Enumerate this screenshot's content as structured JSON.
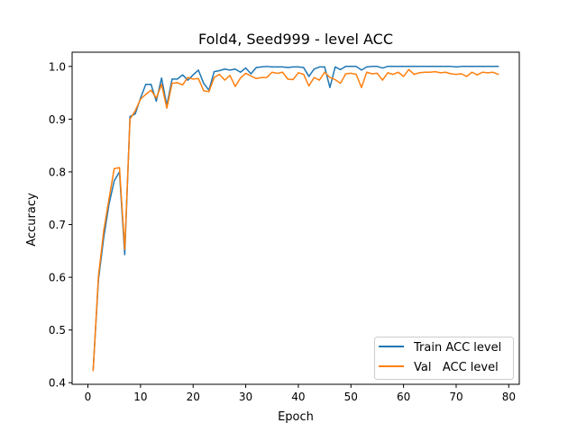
{
  "chart_data": {
    "type": "line",
    "title": "Fold4, Seed999 - level ACC",
    "xlabel": "Epoch",
    "ylabel": "Accuracy",
    "xlim": [
      -3,
      82
    ],
    "ylim": [
      0.397,
      1.027
    ],
    "xticks": [
      0,
      10,
      20,
      30,
      40,
      50,
      60,
      70,
      80
    ],
    "yticks": [
      0.4,
      0.5,
      0.6,
      0.7,
      0.8,
      0.9,
      1.0
    ],
    "ytick_labels": [
      "0.4",
      "0.5",
      "0.6",
      "0.7",
      "0.8",
      "0.9",
      "1.0"
    ],
    "grid": false,
    "legend_position": "lower-right",
    "x": [
      1,
      2,
      3,
      4,
      5,
      6,
      7,
      8,
      9,
      10,
      11,
      12,
      13,
      14,
      15,
      16,
      17,
      18,
      19,
      20,
      21,
      22,
      23,
      24,
      25,
      26,
      27,
      28,
      29,
      30,
      31,
      32,
      33,
      34,
      35,
      36,
      37,
      38,
      39,
      40,
      41,
      42,
      43,
      44,
      45,
      46,
      47,
      48,
      49,
      50,
      51,
      52,
      53,
      54,
      55,
      56,
      57,
      58,
      59,
      60,
      61,
      62,
      63,
      64,
      65,
      66,
      67,
      68,
      69,
      70,
      71,
      72,
      73,
      74,
      75,
      76,
      77,
      78
    ],
    "series": [
      {
        "name": "Train ACC level",
        "color": "#1f77b4",
        "values": [
          0.425,
          0.595,
          0.675,
          0.738,
          0.783,
          0.8,
          0.643,
          0.905,
          0.91,
          0.94,
          0.966,
          0.966,
          0.934,
          0.978,
          0.926,
          0.976,
          0.976,
          0.984,
          0.974,
          0.984,
          0.993,
          0.968,
          0.955,
          0.99,
          0.992,
          0.995,
          0.993,
          0.995,
          0.989,
          0.997,
          0.986,
          0.998,
          0.999,
          1.0,
          0.999,
          0.999,
          0.999,
          0.998,
          0.999,
          0.999,
          0.998,
          0.981,
          0.995,
          0.999,
          0.999,
          0.96,
          0.999,
          0.994,
          1.0,
          1.0,
          1.0,
          0.993,
          0.999,
          1.0,
          1.0,
          0.997,
          1.0,
          1.0,
          1.0,
          1.0,
          1.0,
          1.0,
          1.0,
          1.0,
          1.0,
          1.0,
          1.0,
          1.0,
          1.0,
          0.999,
          1.0,
          1.0,
          1.0,
          1.0,
          1.0,
          1.0,
          1.0,
          1.0
        ]
      },
      {
        "name": "Val   ACC level",
        "color": "#ff7f0e",
        "values": [
          0.423,
          0.602,
          0.688,
          0.748,
          0.806,
          0.808,
          0.653,
          0.9,
          0.916,
          0.938,
          0.947,
          0.955,
          0.94,
          0.966,
          0.921,
          0.968,
          0.969,
          0.965,
          0.979,
          0.976,
          0.977,
          0.954,
          0.952,
          0.979,
          0.985,
          0.974,
          0.983,
          0.962,
          0.978,
          0.987,
          0.982,
          0.977,
          0.979,
          0.979,
          0.989,
          0.987,
          0.989,
          0.976,
          0.975,
          0.988,
          0.985,
          0.963,
          0.979,
          0.974,
          0.989,
          0.979,
          0.975,
          0.968,
          0.986,
          0.987,
          0.985,
          0.96,
          0.989,
          0.986,
          0.987,
          0.974,
          0.988,
          0.985,
          0.989,
          0.981,
          0.994,
          0.985,
          0.988,
          0.989,
          0.989,
          0.99,
          0.988,
          0.989,
          0.986,
          0.985,
          0.986,
          0.981,
          0.989,
          0.984,
          0.989,
          0.988,
          0.989,
          0.985
        ]
      }
    ]
  }
}
